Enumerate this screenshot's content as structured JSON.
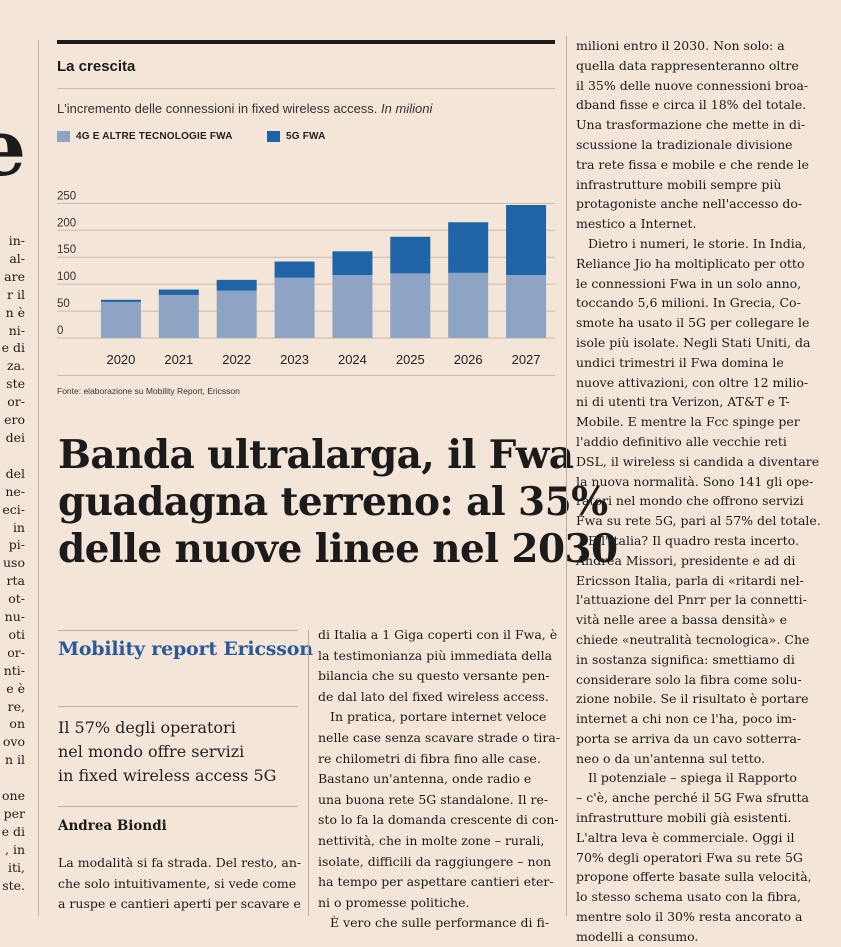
{
  "left_fragment": {
    "big_letter": "e",
    "lines": [
      "in-",
      "al-",
      "are",
      "r il",
      "n è",
      "ni-",
      "e di",
      "za.",
      "ste",
      "or-",
      "ero",
      "dei",
      "",
      "del",
      "ne-",
      "eci-",
      "in",
      "pi-",
      "uso",
      "rta",
      "ot-",
      "nu-",
      "oti",
      "or-",
      "nti-",
      "e è",
      "re,",
      "on",
      "ovo",
      "n il",
      "",
      "one",
      "per",
      "e di",
      ", in",
      "iti,",
      "ste."
    ]
  },
  "chart": {
    "header": "La crescita",
    "subtitle": "L'incremento delle connessioni in fixed wireless access.",
    "subtitle_unit": "In milioni",
    "source": "Fonte: elaborazione su Mobility Report, Ericsson",
    "colors": {
      "series1": "#8ea4c4",
      "series2": "#1f64a6",
      "grid": "#c9b9a9"
    }
  },
  "chart_data": {
    "type": "bar",
    "stacked": true,
    "title": "La crescita",
    "subtitle": "L'incremento delle connessioni in fixed wireless access. In milioni",
    "categories": [
      "2020",
      "2021",
      "2022",
      "2023",
      "2024",
      "2025",
      "2026",
      "2027"
    ],
    "series": [
      {
        "name": "4G E ALTRE TECNOLOGIE FWA",
        "values": [
          67,
          80,
          88,
          112,
          117,
          120,
          121,
          117
        ]
      },
      {
        "name": "5G FWA",
        "values": [
          4,
          10,
          20,
          30,
          44,
          68,
          94,
          130
        ]
      }
    ],
    "yticks": [
      "0",
      "50",
      "100",
      "150",
      "200",
      "250"
    ],
    "ylim": [
      0,
      260
    ],
    "xlabel": "",
    "ylabel": "",
    "legend": "top-left",
    "grid": true
  },
  "headline": [
    "Banda ultralarga, il Fwa",
    "guadagna terreno: al 35%",
    "delle nuove linee nel 2030"
  ],
  "kicker": "Mobility report Ericsson",
  "summary": [
    "Il 57% degli operatori",
    "nel mondo offre servizi",
    "in fixed wireless access 5G"
  ],
  "author": "Andrea Biondi",
  "lead_lines": [
    "La modalità si fa strada. Del resto, an-",
    "che solo intuitivamente, si vede come",
    "a ruspe e cantieri aperti per scavare e"
  ],
  "middle_lines": [
    "di Italia a 1 Giga coperti con il Fwa, è",
    "la testimonianza più immediata della",
    "bilancia che su questo versante pen-",
    "de dal lato del fixed wireless access.",
    "In pratica, portare internet veloce",
    "nelle case senza scavare strade o tira-",
    "re chilometri di fibra fino alle case.",
    "Bastano un'antenna, onde radio e",
    "una buona rete 5G standalone. Il re-",
    "sto lo fa la domanda crescente di con-",
    "nettività, che in molte zone – rurali,",
    "isolate, difficili da raggiungere – non",
    "ha tempo per aspettare cantieri eter-",
    "ni o promesse politiche.",
    "È vero che sulle performance di fi-"
  ],
  "right_lines": [
    "milioni entro il 2030. Non solo: a",
    "quella data rappresenteranno oltre",
    "il 35% delle nuove connessioni broa-",
    "dband fisse e circa il 18% del totale.",
    "Una trasformazione che mette in di-",
    "scussione la tradizionale divisione",
    "tra rete fissa e mobile e che rende le",
    "infrastrutture mobili sempre più",
    "protagoniste anche nell'accesso do-",
    "mestico a Internet.",
    "Dietro i numeri, le storie. In India,",
    "Reliance Jio ha moltiplicato per otto",
    "le connessioni Fwa in un solo anno,",
    "toccando 5,6 milioni. In Grecia, Co-",
    "smote ha usato il 5G per collegare le",
    "isole più isolate. Negli Stati Uniti, da",
    "undici trimestri il Fwa domina le",
    "nuove attivazioni, con oltre 12 milio-",
    "ni di utenti tra Verizon, AT&T e T-",
    "Mobile. E mentre la Fcc spinge per",
    "l'addio definitivo alle vecchie reti",
    "DSL, il wireless si candida a diventare",
    "la nuova normalità. Sono 141 gli ope-",
    "ratori nel mondo che offrono servizi",
    "Fwa su rete 5G, pari al 57% del totale.",
    "E l'Italia? Il quadro resta incerto.",
    "Andrea Missori, presidente e ad di",
    "Ericsson Italia, parla di «ritardi nel-",
    "l'attuazione del Pnrr per la connetti-",
    "vità nelle aree a bassa densità» e",
    "chiede «neutralità tecnologica». Che",
    "in sostanza significa: smettiamo di",
    "considerare solo la fibra come solu-",
    "zione nobile. Se il risultato è portare",
    "internet a chi non ce l'ha, poco im-",
    "porta se arriva da un cavo sotterra-",
    "neo o da un'antenna sul tetto.",
    "Il potenziale – spiega il Rapporto",
    "– c'è, anche perché il 5G Fwa sfrutta",
    "infrastrutture mobili già esistenti.",
    "L'altra leva è commerciale. Oggi il",
    "70% degli operatori Fwa su rete 5G",
    "propone offerte basate sulla velocità,",
    "lo stesso schema usato con la fibra,",
    "mentre solo il 30% resta ancorato a",
    "modelli a consumo."
  ],
  "middle_indent": [
    4,
    14
  ],
  "right_indent": [
    10,
    25,
    37
  ]
}
